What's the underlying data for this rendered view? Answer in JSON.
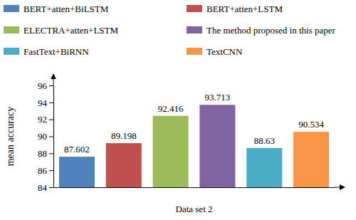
{
  "chart_data": {
    "type": "bar",
    "x_label": "Data set 2",
    "y_label": "mean accuracy",
    "categories": [
      "Data set 2"
    ],
    "series": [
      {
        "name": "BERT+atten+BiLSTM",
        "color": "#4f81bd",
        "values": [
          87.602
        ]
      },
      {
        "name": "BERT+atten+LSTM",
        "color": "#c0504d",
        "values": [
          89.198
        ]
      },
      {
        "name": "ELECTRA+atten+LSTM",
        "color": "#9bbb59",
        "values": [
          92.416
        ]
      },
      {
        "name": "The method proposed in this paper",
        "color": "#8064a2",
        "values": [
          93.713
        ]
      },
      {
        "name": "FastText+BiRNN",
        "color": "#4bacc6",
        "values": [
          88.63
        ]
      },
      {
        "name": "TextCNN",
        "color": "#f79646",
        "values": [
          90.534
        ]
      }
    ],
    "ylim": [
      84,
      96
    ],
    "yticks": [
      84,
      86,
      88,
      90,
      92,
      94,
      96
    ],
    "grid": false,
    "legend": "top",
    "data_labels": true
  }
}
